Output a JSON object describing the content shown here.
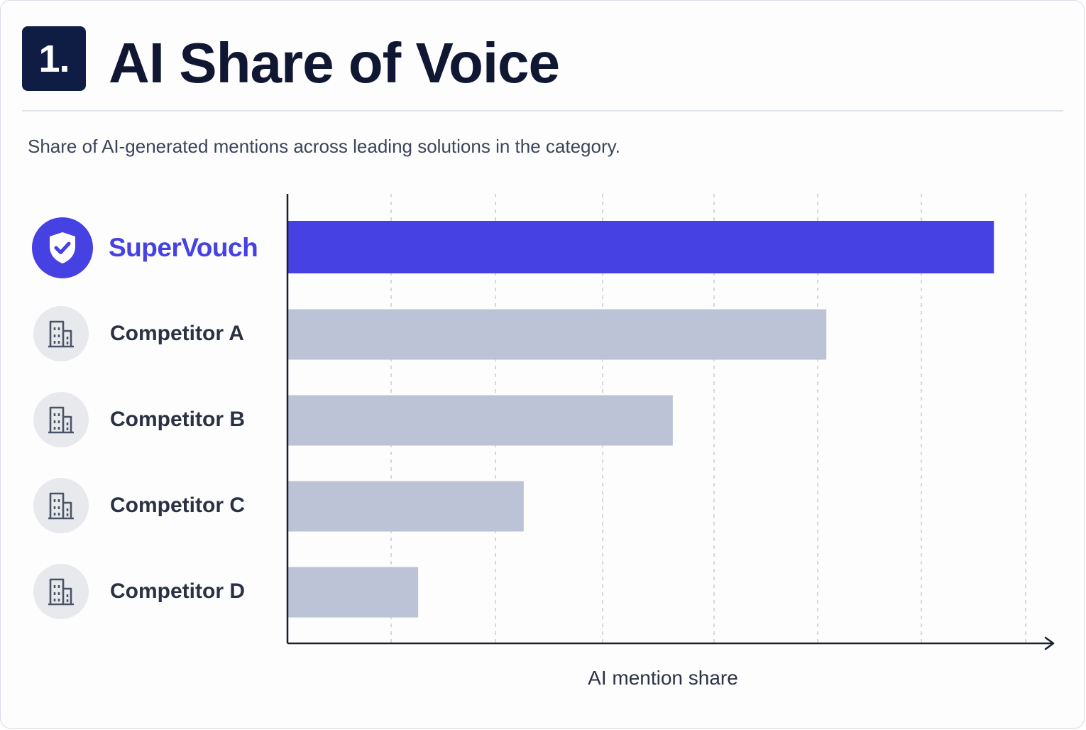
{
  "header": {
    "number": "1.",
    "title": "AI Share of Voice"
  },
  "subtitle": "Share of AI-generated mentions across leading solutions in the category.",
  "colors": {
    "highlight": "#4541e2",
    "bar": "#bcc3d6",
    "axis": "#1a1f2e",
    "gridline": "#c9ccd4"
  },
  "chart_data": {
    "type": "bar",
    "orientation": "horizontal",
    "categories": [
      "SuperVouch",
      "Competitor A",
      "Competitor B",
      "Competitor C",
      "Competitor D"
    ],
    "values": [
      0.957,
      0.73,
      0.522,
      0.32,
      0.177
    ],
    "highlighted_category": "SuperVouch",
    "xlabel": "AI mention share",
    "ylabel": "",
    "xlim": [
      0,
      1
    ],
    "grid": "vertical dashed",
    "tick_labels_shown": false,
    "legend": "none",
    "icons": [
      "shield-check-icon",
      "building-icon",
      "building-icon",
      "building-icon",
      "building-icon"
    ]
  }
}
